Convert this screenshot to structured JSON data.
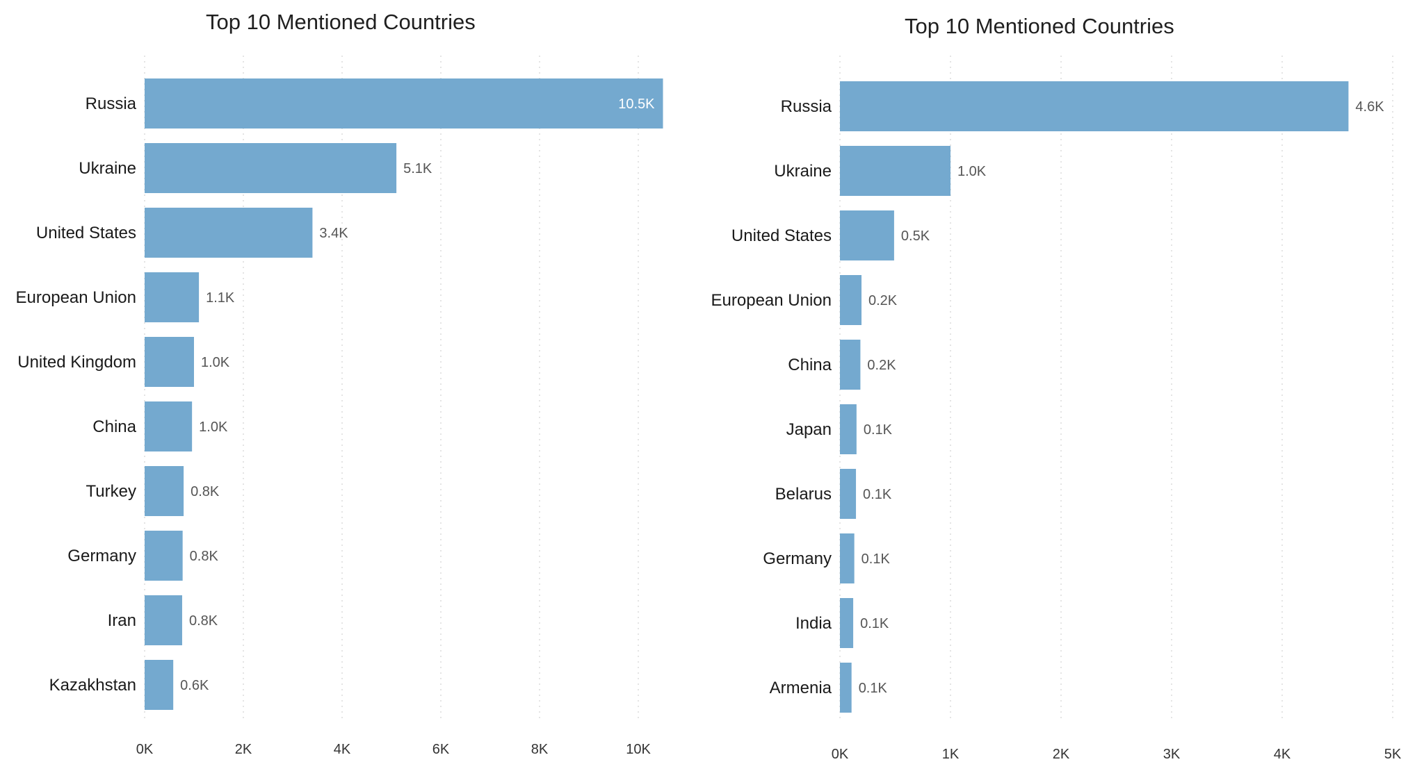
{
  "chart_data": [
    {
      "type": "bar",
      "orientation": "horizontal",
      "title": "Top 10 Mentioned Countries",
      "categories": [
        "Russia",
        "Ukraine",
        "United States",
        "European Union",
        "United Kingdom",
        "China",
        "Turkey",
        "Germany",
        "Iran",
        "Kazakhstan"
      ],
      "values": [
        10500,
        5100,
        3400,
        1100,
        1000,
        960,
        790,
        770,
        760,
        580
      ],
      "value_labels": [
        "10.5K",
        "5.1K",
        "3.4K",
        "1.1K",
        "1.0K",
        "1.0K",
        "0.8K",
        "0.8K",
        "0.8K",
        "0.6K"
      ],
      "xticks": [
        0,
        2000,
        4000,
        6000,
        8000,
        10000
      ],
      "xtick_labels": [
        "0K",
        "2K",
        "4K",
        "6K",
        "8K",
        "10K"
      ],
      "xlim": [
        0,
        10500
      ],
      "grid": true,
      "bar_color": "#74a9cf"
    },
    {
      "type": "bar",
      "orientation": "horizontal",
      "title": "Top 10 Mentioned Countries",
      "categories": [
        "Russia",
        "Ukraine",
        "United States",
        "European Union",
        "China",
        "Japan",
        "Belarus",
        "Germany",
        "India",
        "Armenia"
      ],
      "values": [
        4600,
        1000,
        490,
        195,
        185,
        150,
        145,
        130,
        120,
        105
      ],
      "value_labels": [
        "4.6K",
        "1.0K",
        "0.5K",
        "0.2K",
        "0.2K",
        "0.1K",
        "0.1K",
        "0.1K",
        "0.1K",
        "0.1K"
      ],
      "xticks": [
        0,
        1000,
        2000,
        3000,
        4000,
        5000
      ],
      "xtick_labels": [
        "0K",
        "1K",
        "2K",
        "3K",
        "4K",
        "5K"
      ],
      "xlim": [
        0,
        5000
      ],
      "grid": true,
      "bar_color": "#74a9cf"
    }
  ]
}
